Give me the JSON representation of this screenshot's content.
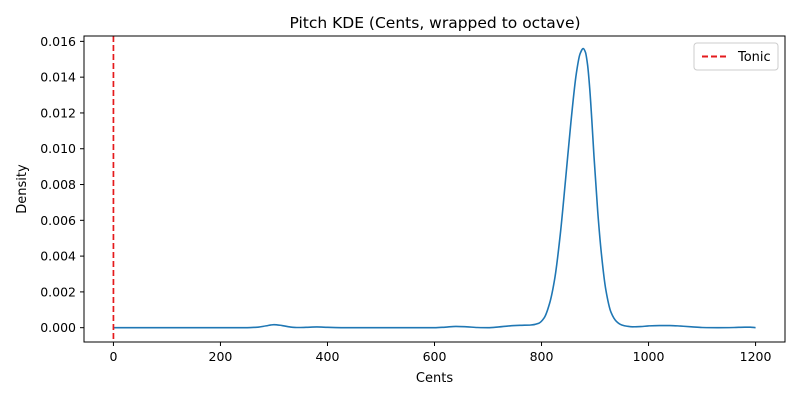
{
  "chart_data": {
    "type": "line",
    "title": "Pitch KDE (Cents, wrapped to octave)",
    "xlabel": "Cents",
    "ylabel": "Density",
    "xlim": [
      -55,
      1255
    ],
    "ylim": [
      -0.0008,
      0.0163
    ],
    "xticks": [
      0,
      200,
      400,
      600,
      800,
      1000,
      1200
    ],
    "xtick_labels": [
      "0",
      "200",
      "400",
      "600",
      "800",
      "1000",
      "1200"
    ],
    "yticks": [
      0.0,
      0.002,
      0.004,
      0.006,
      0.008,
      0.01,
      0.012,
      0.014,
      0.016
    ],
    "ytick_labels": [
      "0.000",
      "0.002",
      "0.004",
      "0.006",
      "0.008",
      "0.010",
      "0.012",
      "0.014",
      "0.016"
    ],
    "grid": false,
    "legend_position": "top-right",
    "series": [
      {
        "color": "#1f77b4",
        "x": [
          0,
          100,
          200,
          250,
          270,
          285,
          300,
          315,
          330,
          345,
          360,
          380,
          400,
          430,
          500,
          560,
          600,
          620,
          640,
          660,
          680,
          700,
          720,
          740,
          760,
          780,
          795,
          805,
          815,
          825,
          835,
          845,
          855,
          865,
          872,
          878,
          882,
          886,
          890,
          894,
          898,
          905,
          912,
          920,
          930,
          940,
          950,
          960,
          970,
          985,
          1000,
          1020,
          1040,
          1060,
          1080,
          1100,
          1130,
          1160,
          1180,
          1190,
          1200
        ],
        "y": [
          0.0,
          0.0,
          0.0,
          0.0,
          3e-05,
          0.0001,
          0.00017,
          0.00012,
          4e-05,
          1e-05,
          2e-05,
          4e-05,
          2e-05,
          0.0,
          0.0,
          0.0,
          0.0,
          3e-05,
          7e-05,
          5e-05,
          1e-05,
          0.0,
          4e-05,
          0.0001,
          0.00013,
          0.00015,
          0.00025,
          0.00055,
          0.00135,
          0.0028,
          0.0052,
          0.0083,
          0.0115,
          0.0142,
          0.0153,
          0.0156,
          0.0154,
          0.0147,
          0.0134,
          0.0116,
          0.0096,
          0.0065,
          0.0041,
          0.00215,
          0.00085,
          0.00035,
          0.00015,
          8e-05,
          5e-05,
          6e-05,
          0.0001,
          0.00012,
          0.00012,
          9e-05,
          5e-05,
          1e-05,
          0.0,
          1e-05,
          3e-05,
          3e-05,
          0.0
        ]
      },
      {
        "name": "Tonic",
        "color": "#e41a1c",
        "style": "dashed",
        "x_vertical": 0
      }
    ]
  }
}
